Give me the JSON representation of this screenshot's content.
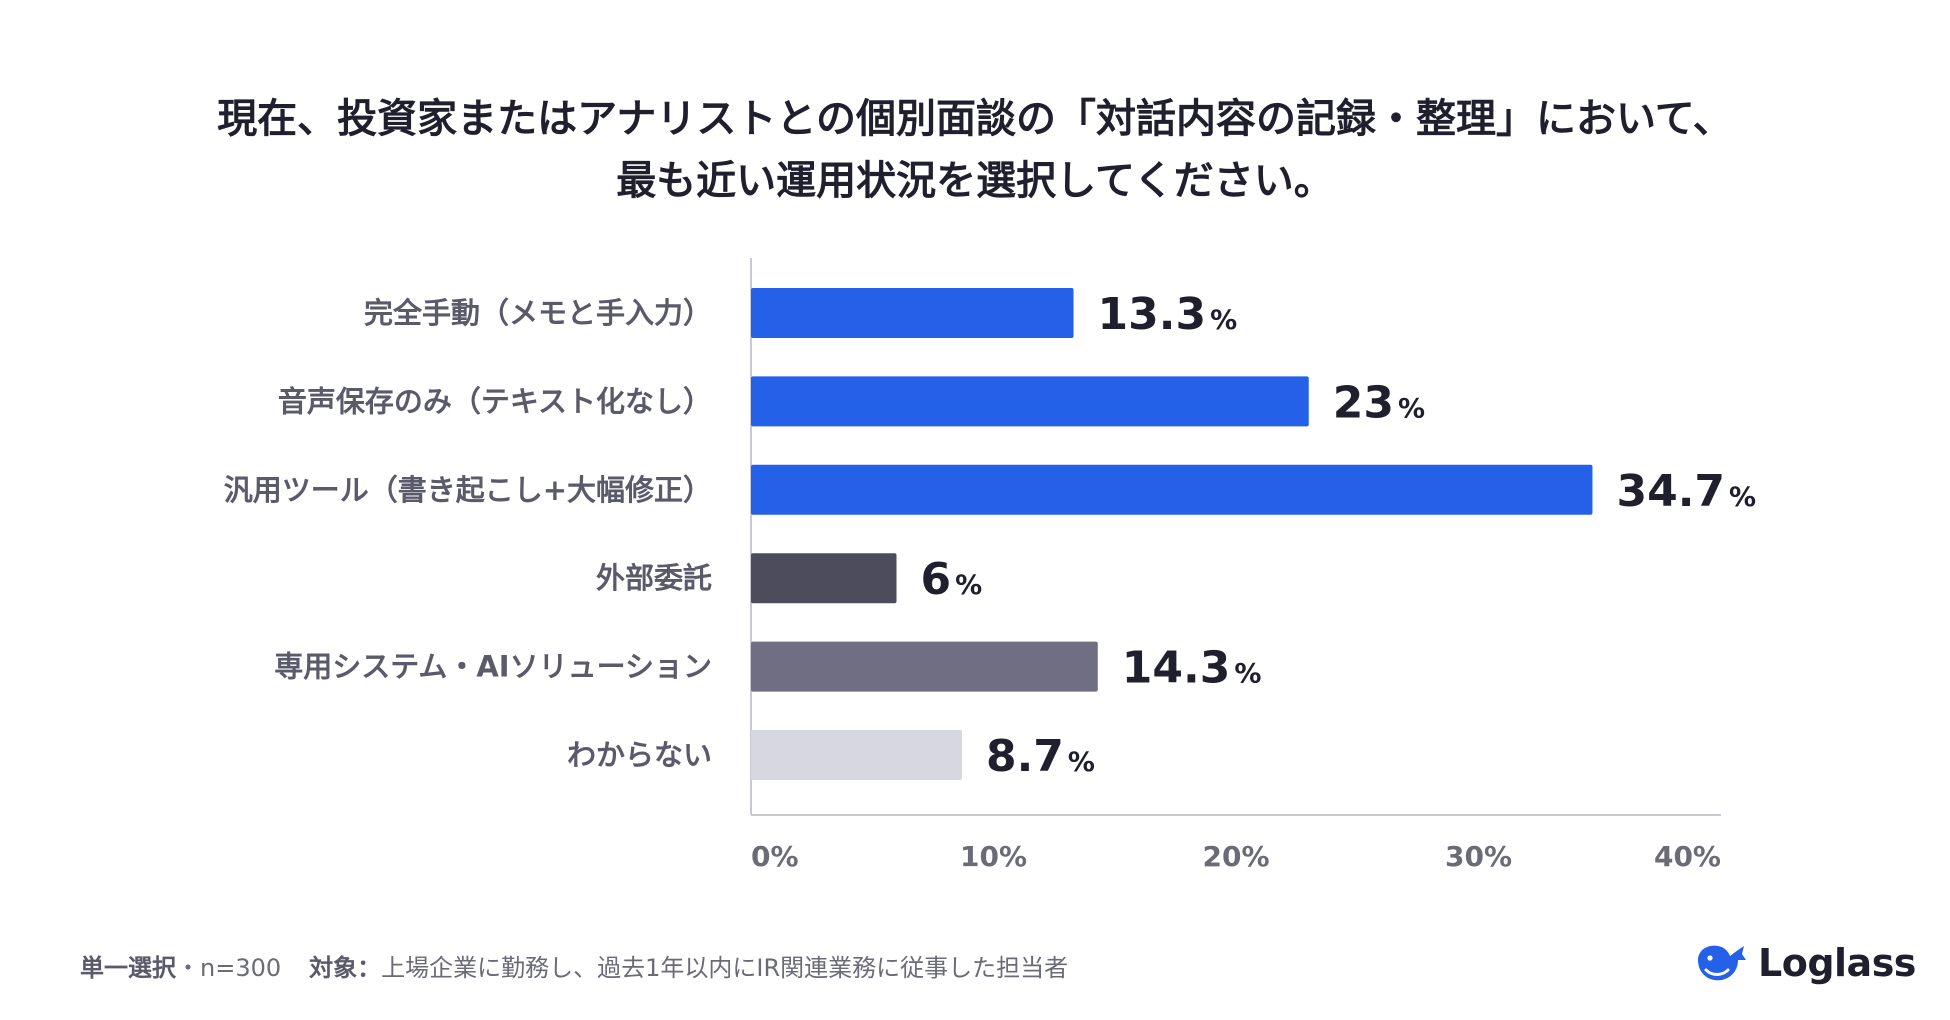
{
  "title": {
    "line1": "現在、投資家またはアナリストとの個別面談の「対話内容の記録・整理」において、",
    "line2": "最も近い運用状況を選択してください。"
  },
  "chart_data": {
    "type": "bar",
    "orientation": "horizontal",
    "categories": [
      "完全手動（メモと手入力）",
      "音声保存のみ（テキスト化なし）",
      "汎用ツール（書き起こし+大幅修正）",
      "外部委託",
      "専用システム・AIソリューション",
      "わからない"
    ],
    "values": [
      13.3,
      23,
      34.7,
      6,
      14.3,
      8.7
    ],
    "value_labels": [
      "13.3",
      "23",
      "34.7",
      "6",
      "14.3",
      "8.7"
    ],
    "unit": "%",
    "colors": [
      "#2460e8",
      "#2460e8",
      "#2460e8",
      "#4d4c5c",
      "#6f6e82",
      "#d7d7df"
    ],
    "xlim": [
      0,
      40
    ],
    "x_ticks": [
      0,
      10,
      20,
      30,
      40
    ],
    "x_tick_labels": [
      "0%",
      "10%",
      "20%",
      "30%",
      "40%"
    ],
    "grid": false,
    "legend": "none"
  },
  "footer": {
    "method_label": "単一選択",
    "sample": "・n=300",
    "target_label": "対象：",
    "target_text": "上場企業に勤務し、過去1年以内にIR関連業務に従事した担当者"
  },
  "logo": {
    "icon": "whale-icon",
    "text": "Loglass",
    "color": "#2460e8"
  }
}
